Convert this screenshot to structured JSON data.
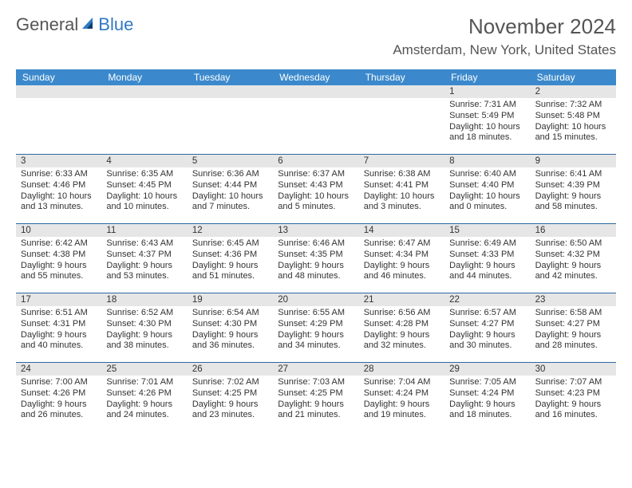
{
  "brand": {
    "part1": "General",
    "part2": "Blue"
  },
  "title": "November 2024",
  "location": "Amsterdam, New York, United States",
  "colors": {
    "header_bg": "#3b89cc",
    "header_text": "#ffffff",
    "row_divider": "#2b6aa3",
    "daynum_bg": "#e6e6e6",
    "text": "#333333",
    "page_bg": "#ffffff",
    "brand_grey": "#555555",
    "brand_blue": "#2f79c2"
  },
  "day_labels": [
    "Sunday",
    "Monday",
    "Tuesday",
    "Wednesday",
    "Thursday",
    "Friday",
    "Saturday"
  ],
  "weeks": [
    [
      null,
      null,
      null,
      null,
      null,
      {
        "num": "1",
        "sunrise": "Sunrise: 7:31 AM",
        "sunset": "Sunset: 5:49 PM",
        "daylight1": "Daylight: 10 hours",
        "daylight2": "and 18 minutes."
      },
      {
        "num": "2",
        "sunrise": "Sunrise: 7:32 AM",
        "sunset": "Sunset: 5:48 PM",
        "daylight1": "Daylight: 10 hours",
        "daylight2": "and 15 minutes."
      }
    ],
    [
      {
        "num": "3",
        "sunrise": "Sunrise: 6:33 AM",
        "sunset": "Sunset: 4:46 PM",
        "daylight1": "Daylight: 10 hours",
        "daylight2": "and 13 minutes."
      },
      {
        "num": "4",
        "sunrise": "Sunrise: 6:35 AM",
        "sunset": "Sunset: 4:45 PM",
        "daylight1": "Daylight: 10 hours",
        "daylight2": "and 10 minutes."
      },
      {
        "num": "5",
        "sunrise": "Sunrise: 6:36 AM",
        "sunset": "Sunset: 4:44 PM",
        "daylight1": "Daylight: 10 hours",
        "daylight2": "and 7 minutes."
      },
      {
        "num": "6",
        "sunrise": "Sunrise: 6:37 AM",
        "sunset": "Sunset: 4:43 PM",
        "daylight1": "Daylight: 10 hours",
        "daylight2": "and 5 minutes."
      },
      {
        "num": "7",
        "sunrise": "Sunrise: 6:38 AM",
        "sunset": "Sunset: 4:41 PM",
        "daylight1": "Daylight: 10 hours",
        "daylight2": "and 3 minutes."
      },
      {
        "num": "8",
        "sunrise": "Sunrise: 6:40 AM",
        "sunset": "Sunset: 4:40 PM",
        "daylight1": "Daylight: 10 hours",
        "daylight2": "and 0 minutes."
      },
      {
        "num": "9",
        "sunrise": "Sunrise: 6:41 AM",
        "sunset": "Sunset: 4:39 PM",
        "daylight1": "Daylight: 9 hours",
        "daylight2": "and 58 minutes."
      }
    ],
    [
      {
        "num": "10",
        "sunrise": "Sunrise: 6:42 AM",
        "sunset": "Sunset: 4:38 PM",
        "daylight1": "Daylight: 9 hours",
        "daylight2": "and 55 minutes."
      },
      {
        "num": "11",
        "sunrise": "Sunrise: 6:43 AM",
        "sunset": "Sunset: 4:37 PM",
        "daylight1": "Daylight: 9 hours",
        "daylight2": "and 53 minutes."
      },
      {
        "num": "12",
        "sunrise": "Sunrise: 6:45 AM",
        "sunset": "Sunset: 4:36 PM",
        "daylight1": "Daylight: 9 hours",
        "daylight2": "and 51 minutes."
      },
      {
        "num": "13",
        "sunrise": "Sunrise: 6:46 AM",
        "sunset": "Sunset: 4:35 PM",
        "daylight1": "Daylight: 9 hours",
        "daylight2": "and 48 minutes."
      },
      {
        "num": "14",
        "sunrise": "Sunrise: 6:47 AM",
        "sunset": "Sunset: 4:34 PM",
        "daylight1": "Daylight: 9 hours",
        "daylight2": "and 46 minutes."
      },
      {
        "num": "15",
        "sunrise": "Sunrise: 6:49 AM",
        "sunset": "Sunset: 4:33 PM",
        "daylight1": "Daylight: 9 hours",
        "daylight2": "and 44 minutes."
      },
      {
        "num": "16",
        "sunrise": "Sunrise: 6:50 AM",
        "sunset": "Sunset: 4:32 PM",
        "daylight1": "Daylight: 9 hours",
        "daylight2": "and 42 minutes."
      }
    ],
    [
      {
        "num": "17",
        "sunrise": "Sunrise: 6:51 AM",
        "sunset": "Sunset: 4:31 PM",
        "daylight1": "Daylight: 9 hours",
        "daylight2": "and 40 minutes."
      },
      {
        "num": "18",
        "sunrise": "Sunrise: 6:52 AM",
        "sunset": "Sunset: 4:30 PM",
        "daylight1": "Daylight: 9 hours",
        "daylight2": "and 38 minutes."
      },
      {
        "num": "19",
        "sunrise": "Sunrise: 6:54 AM",
        "sunset": "Sunset: 4:30 PM",
        "daylight1": "Daylight: 9 hours",
        "daylight2": "and 36 minutes."
      },
      {
        "num": "20",
        "sunrise": "Sunrise: 6:55 AM",
        "sunset": "Sunset: 4:29 PM",
        "daylight1": "Daylight: 9 hours",
        "daylight2": "and 34 minutes."
      },
      {
        "num": "21",
        "sunrise": "Sunrise: 6:56 AM",
        "sunset": "Sunset: 4:28 PM",
        "daylight1": "Daylight: 9 hours",
        "daylight2": "and 32 minutes."
      },
      {
        "num": "22",
        "sunrise": "Sunrise: 6:57 AM",
        "sunset": "Sunset: 4:27 PM",
        "daylight1": "Daylight: 9 hours",
        "daylight2": "and 30 minutes."
      },
      {
        "num": "23",
        "sunrise": "Sunrise: 6:58 AM",
        "sunset": "Sunset: 4:27 PM",
        "daylight1": "Daylight: 9 hours",
        "daylight2": "and 28 minutes."
      }
    ],
    [
      {
        "num": "24",
        "sunrise": "Sunrise: 7:00 AM",
        "sunset": "Sunset: 4:26 PM",
        "daylight1": "Daylight: 9 hours",
        "daylight2": "and 26 minutes."
      },
      {
        "num": "25",
        "sunrise": "Sunrise: 7:01 AM",
        "sunset": "Sunset: 4:26 PM",
        "daylight1": "Daylight: 9 hours",
        "daylight2": "and 24 minutes."
      },
      {
        "num": "26",
        "sunrise": "Sunrise: 7:02 AM",
        "sunset": "Sunset: 4:25 PM",
        "daylight1": "Daylight: 9 hours",
        "daylight2": "and 23 minutes."
      },
      {
        "num": "27",
        "sunrise": "Sunrise: 7:03 AM",
        "sunset": "Sunset: 4:25 PM",
        "daylight1": "Daylight: 9 hours",
        "daylight2": "and 21 minutes."
      },
      {
        "num": "28",
        "sunrise": "Sunrise: 7:04 AM",
        "sunset": "Sunset: 4:24 PM",
        "daylight1": "Daylight: 9 hours",
        "daylight2": "and 19 minutes."
      },
      {
        "num": "29",
        "sunrise": "Sunrise: 7:05 AM",
        "sunset": "Sunset: 4:24 PM",
        "daylight1": "Daylight: 9 hours",
        "daylight2": "and 18 minutes."
      },
      {
        "num": "30",
        "sunrise": "Sunrise: 7:07 AM",
        "sunset": "Sunset: 4:23 PM",
        "daylight1": "Daylight: 9 hours",
        "daylight2": "and 16 minutes."
      }
    ]
  ]
}
